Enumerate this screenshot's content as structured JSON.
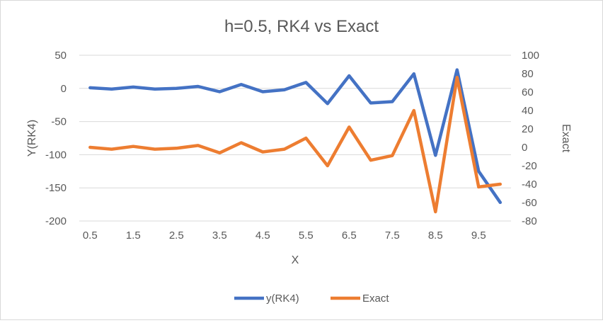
{
  "chart_data": {
    "type": "line",
    "title": "h=0.5, RK4 vs Exact",
    "xlabel": "X",
    "ylabel": "Y(RK4)",
    "y2label": "Exact",
    "x": [
      0.5,
      1,
      1.5,
      2,
      2.5,
      3,
      3.5,
      4,
      4.5,
      5,
      5.5,
      6,
      6.5,
      7,
      7.5,
      8,
      8.5,
      9,
      9.5,
      10
    ],
    "x_tick_labels": [
      "0.5",
      "1.5",
      "2.5",
      "3.5",
      "4.5",
      "5.5",
      "6.5",
      "7.5",
      "8.5",
      "9.5"
    ],
    "ylim": [
      -200,
      50
    ],
    "y_ticks": [
      50,
      0,
      -50,
      -100,
      -150,
      -200
    ],
    "y2lim": [
      -80,
      100
    ],
    "y2_ticks": [
      100,
      80,
      60,
      40,
      20,
      0,
      -20,
      -40,
      -60,
      -80
    ],
    "grid": true,
    "legend_position": "bottom",
    "series": [
      {
        "name": "y(RK4)",
        "axis": "left",
        "color": "#4472C4",
        "values": [
          1,
          -1,
          2,
          -1,
          0,
          3,
          -5,
          6,
          -5,
          -2,
          9,
          -23,
          19,
          -22,
          -20,
          22,
          -101,
          28,
          -125,
          -172
        ]
      },
      {
        "name": "Exact",
        "axis": "right",
        "color": "#ED7D31",
        "values": [
          0,
          -2,
          1,
          -2,
          -1,
          2,
          -6,
          5,
          -5,
          -2,
          10,
          -20,
          22,
          -14,
          -9,
          40,
          -70,
          76,
          -43,
          -40
        ]
      }
    ]
  }
}
